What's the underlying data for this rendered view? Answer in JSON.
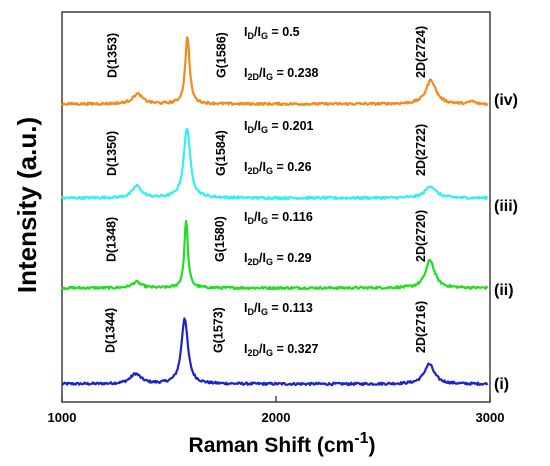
{
  "chart_data": {
    "type": "line",
    "xlabel": "Raman Shift (cm",
    "xlabel_sup": "-1",
    "xlabel_close": ")",
    "ylabel": "Intensity (a.u.)",
    "xlim": [
      1000,
      3000
    ],
    "xticks": [
      "1000",
      "2000",
      "3000"
    ],
    "grid": false,
    "series": [
      {
        "name": "(i)",
        "color": "#1f22c8",
        "baseline": 0.0,
        "peaks": [
          {
            "label": "D(1344)",
            "x": 1344,
            "height": 0.05,
            "width": 30
          },
          {
            "label": "G(1573)",
            "x": 1573,
            "height": 0.33,
            "width": 18
          },
          {
            "label": "2D(2716)",
            "x": 2716,
            "height": 0.1,
            "width": 28
          }
        ],
        "ratio_D": "0.113",
        "ratio_2D": "0.327"
      },
      {
        "name": "(ii)",
        "color": "#22dd22",
        "baseline": 0.48,
        "peaks": [
          {
            "label": "D(1348)",
            "x": 1348,
            "height": 0.03,
            "width": 25
          },
          {
            "label": "G(1580)",
            "x": 1580,
            "height": 0.34,
            "width": 10
          },
          {
            "label": "2D(2720)",
            "x": 2720,
            "height": 0.14,
            "width": 25
          }
        ],
        "ratio_D": "0.116",
        "ratio_2D": "0.29"
      },
      {
        "name": "(iii)",
        "color": "#33eef2",
        "baseline": 0.93,
        "peaks": [
          {
            "label": "D(1350)",
            "x": 1350,
            "height": 0.06,
            "width": 25
          },
          {
            "label": "G(1584)",
            "x": 1584,
            "height": 0.35,
            "width": 18
          },
          {
            "label": "2D(2722)",
            "x": 2722,
            "height": 0.06,
            "width": 30
          }
        ],
        "ratio_D": "0.201",
        "ratio_2D": "0.26"
      },
      {
        "name": "(iv)",
        "color": "#f28b1c",
        "baseline": 1.4,
        "peaks": [
          {
            "label": "D(1353)",
            "x": 1353,
            "height": 0.05,
            "width": 28
          },
          {
            "label": "G(1586)",
            "x": 1586,
            "height": 0.34,
            "width": 12
          },
          {
            "label": "2D(2724)",
            "x": 2724,
            "height": 0.12,
            "width": 28
          }
        ],
        "ratio_D": "0.5",
        "ratio_2D": "0.238"
      }
    ]
  }
}
